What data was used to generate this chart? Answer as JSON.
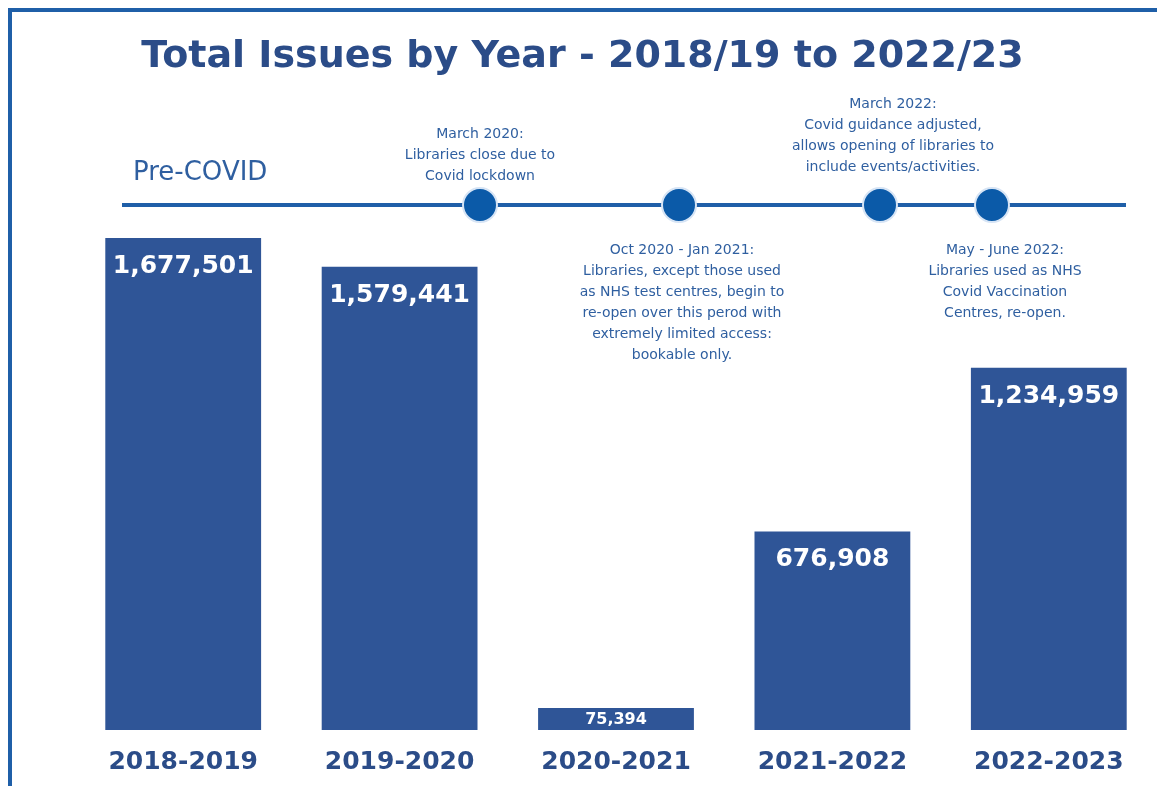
{
  "chart_data": {
    "type": "bar",
    "title": "Total Issues by Year - 2018/19 to 2022/23",
    "categories": [
      "2018-2019",
      "2019-2020",
      "2020-2021",
      "2021-2022",
      "2022-2023"
    ],
    "values": [
      1677501,
      1579441,
      75394,
      676908,
      1234959
    ],
    "color": "#2f5597",
    "value_labels": [
      "1,677,501",
      "1,579,441",
      "75,394",
      "676,908",
      "1,234,959"
    ],
    "annotations": [
      "Pre-COVID",
      "March 2020:\nLibraries close due to\nCovid lockdown",
      "Oct 2020 - Jan 2021:\nLibraries, except those used\nas NHS test centres, begin to\nre-open over this perod with\nextremely limited access:\nbookable only.",
      "March 2022:\nCovid guidance adjusted,\nallows opening of libraries to\ninclude events/activities.",
      "May - June 2022:\nLibraries used as NHS\nCovid Vaccination\nCentres, re-open."
    ]
  }
}
